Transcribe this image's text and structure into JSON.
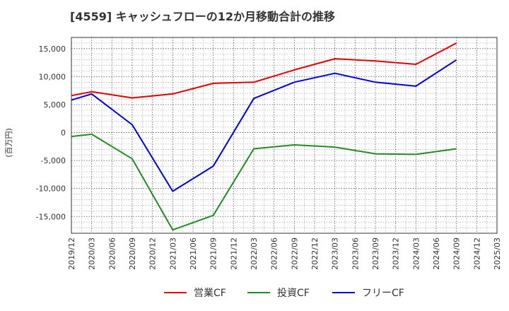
{
  "chart_data": {
    "type": "line",
    "title": "[4559]  キャッシュフローの12か月移動合計の推移",
    "ylabel": "(百万円)",
    "xlabel": "",
    "ylim": [
      -18000,
      17000
    ],
    "yticks": [
      -15000,
      -10000,
      -5000,
      0,
      5000,
      10000,
      15000
    ],
    "ytick_labels": [
      "-15,000",
      "-10,000",
      "-5,000",
      "0",
      "5,000",
      "10,000",
      "15,000"
    ],
    "x": [
      "2019/12",
      "2020/03",
      "2020/06",
      "2020/09",
      "2020/12",
      "2021/03",
      "2021/06",
      "2021/09",
      "2021/12",
      "2022/03",
      "2022/06",
      "2022/09",
      "2022/12",
      "2023/03",
      "2023/06",
      "2023/09",
      "2023/12",
      "2024/03",
      "2024/06",
      "2024/09",
      "2024/12",
      "2025/03"
    ],
    "series": [
      {
        "name": "営業CF",
        "color": "#e60000",
        "values": [
          6600,
          7300,
          null,
          6200,
          null,
          6900,
          null,
          8800,
          null,
          9000,
          null,
          11200,
          null,
          13200,
          null,
          12800,
          null,
          12200,
          null,
          16000,
          null,
          null
        ]
      },
      {
        "name": "投資CF",
        "color": "#228b22",
        "values": [
          -700,
          -300,
          null,
          -4700,
          null,
          -17400,
          null,
          -14800,
          null,
          -2900,
          null,
          -2200,
          null,
          -2600,
          null,
          -3800,
          null,
          -3900,
          null,
          -2900,
          null,
          null
        ]
      },
      {
        "name": "フリーCF",
        "color": "#0000dd",
        "values": [
          5800,
          6900,
          null,
          1400,
          null,
          -10500,
          null,
          -6000,
          null,
          6100,
          null,
          9000,
          null,
          10600,
          null,
          9000,
          null,
          8300,
          null,
          13000,
          null,
          null
        ]
      }
    ],
    "grid": true,
    "legend_position": "bottom-center"
  }
}
